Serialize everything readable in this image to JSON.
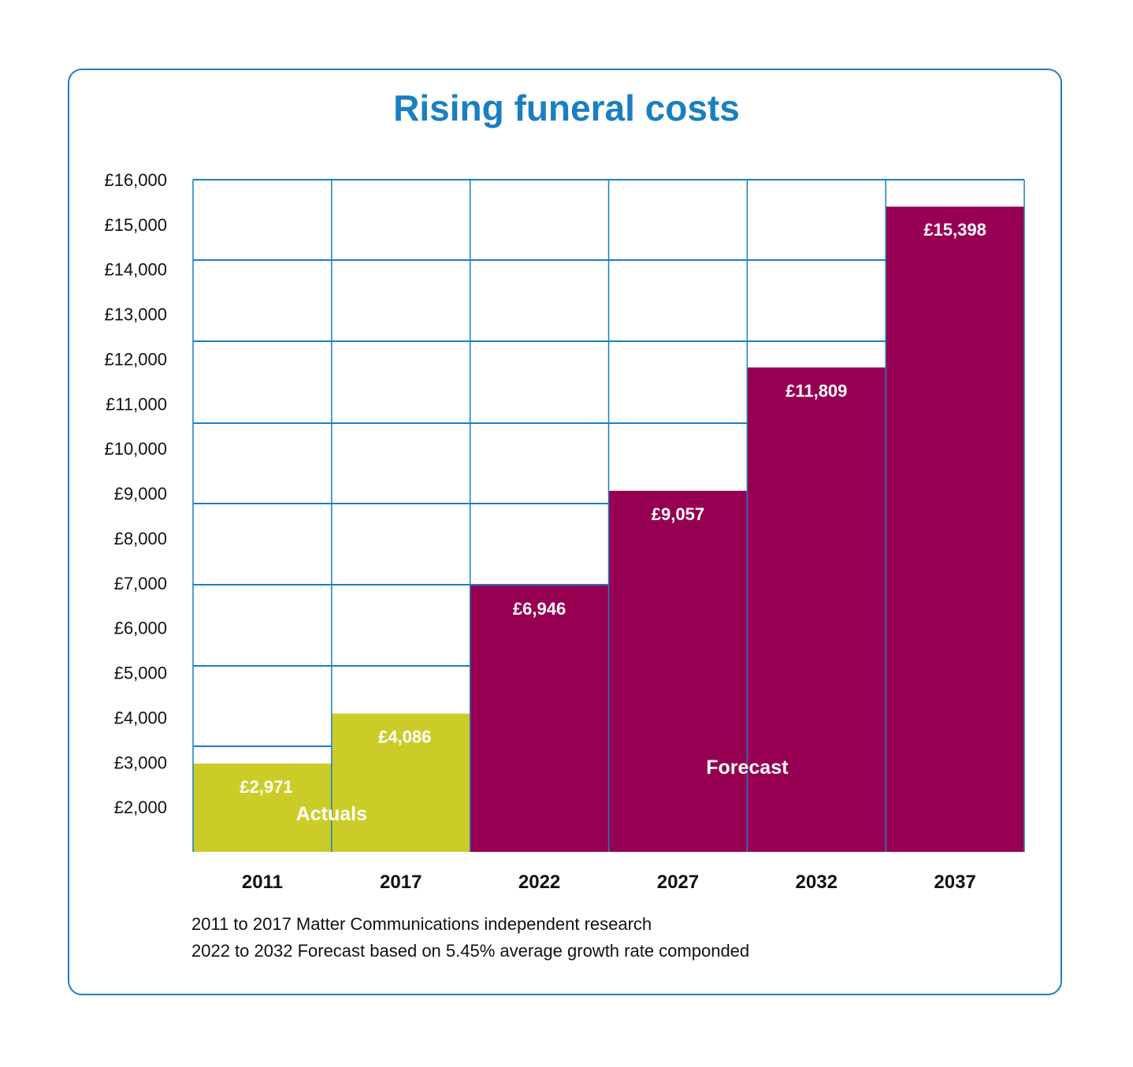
{
  "chart_data": {
    "type": "bar",
    "title": "Rising funeral costs",
    "categories": [
      "2011",
      "2017",
      "2022",
      "2027",
      "2032",
      "2037"
    ],
    "values": [
      2971,
      4086,
      6946,
      9057,
      11809,
      15398
    ],
    "value_labels": [
      "£2,971",
      "£4,086",
      "£6,946",
      "£9,057",
      "£11,809",
      "£15,398"
    ],
    "bar_kind": [
      "actual",
      "actual",
      "forecast",
      "forecast",
      "forecast",
      "forecast"
    ],
    "group_labels": {
      "actual": "Actuals",
      "forecast": "Forecast"
    },
    "ylim": [
      1000,
      16000
    ],
    "y_ticks": [
      16000,
      15000,
      14000,
      13000,
      12000,
      11000,
      10000,
      9000,
      8000,
      7000,
      6000,
      5000,
      4000,
      3000,
      2000
    ],
    "y_tick_labels": [
      "£16,000",
      "£15,000",
      "£14,000",
      "£13,000",
      "£12,000",
      "£11,000",
      "£10,000",
      "£9,000",
      "£8,000",
      "£7,000",
      "£6,000",
      "£5,000",
      "£4,000",
      "£3,000",
      "£2,000"
    ],
    "grid": true,
    "colors": {
      "actual": "#cccc29",
      "forecast": "#970052",
      "grid": "#1a7fc1",
      "title": "#1a7fc1"
    }
  },
  "notes": [
    "2011 to 2017 Matter Communications independent research",
    "2022 to 2032 Forecast based on 5.45% average growth rate componded"
  ]
}
